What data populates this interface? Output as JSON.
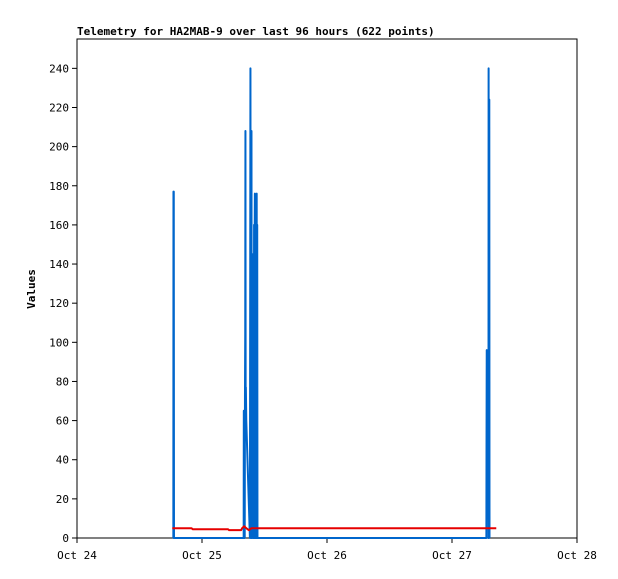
{
  "chart_data": {
    "type": "line",
    "title": "Telemetry for HA2MAB-9 over last 96 hours (622 points)",
    "ylabel": "Values",
    "xlabel": "",
    "x_ticks": [
      "Oct 24",
      "Oct 25",
      "Oct 26",
      "Oct 27",
      "Oct 28"
    ],
    "x_range_hours": [
      0,
      96
    ],
    "y_ticks": [
      0,
      20,
      40,
      60,
      80,
      100,
      120,
      140,
      160,
      180,
      200,
      220,
      240
    ],
    "ylim": [
      0,
      255
    ],
    "grid": false,
    "colors": {
      "series_blue": "#0066cc",
      "series_red": "#e60000"
    },
    "series": [
      {
        "color": "#0066cc",
        "points": [
          [
            18.5,
            0
          ],
          [
            18.52,
            177
          ],
          [
            18.54,
            0
          ],
          [
            18.58,
            177
          ],
          [
            18.62,
            0
          ],
          [
            32.0,
            0
          ],
          [
            32.03,
            65
          ],
          [
            32.07,
            0
          ],
          [
            32.1,
            40
          ],
          [
            32.13,
            56
          ],
          [
            32.2,
            0
          ],
          [
            32.25,
            72
          ],
          [
            32.3,
            104
          ],
          [
            32.34,
            208
          ],
          [
            32.38,
            64
          ],
          [
            32.42,
            77
          ],
          [
            32.5,
            60
          ],
          [
            33.2,
            0
          ],
          [
            33.3,
            240
          ],
          [
            33.36,
            0
          ],
          [
            33.4,
            160
          ],
          [
            33.45,
            0
          ],
          [
            33.5,
            208
          ],
          [
            33.55,
            0
          ],
          [
            33.6,
            112
          ],
          [
            33.7,
            0
          ],
          [
            33.75,
            145
          ],
          [
            33.8,
            0
          ],
          [
            33.85,
            50
          ],
          [
            33.92,
            0
          ],
          [
            34.0,
            160
          ],
          [
            34.05,
            0
          ],
          [
            34.1,
            144
          ],
          [
            34.15,
            176
          ],
          [
            34.2,
            0
          ],
          [
            34.3,
            144
          ],
          [
            34.35,
            64
          ],
          [
            34.4,
            128
          ],
          [
            34.45,
            0
          ],
          [
            34.5,
            176
          ],
          [
            34.55,
            0
          ],
          [
            34.6,
            160
          ],
          [
            34.65,
            0
          ],
          [
            78.6,
            0
          ],
          [
            78.63,
            48
          ],
          [
            78.67,
            96
          ],
          [
            78.75,
            90
          ],
          [
            78.82,
            82
          ],
          [
            78.9,
            72
          ],
          [
            78.95,
            64
          ],
          [
            79.0,
            0
          ],
          [
            79.03,
            240
          ],
          [
            79.06,
            0
          ],
          [
            79.09,
            208
          ],
          [
            79.12,
            0
          ],
          [
            79.16,
            224
          ],
          [
            79.2,
            0
          ]
        ]
      },
      {
        "color": "#e60000",
        "points": [
          [
            18.3,
            5
          ],
          [
            22.0,
            5
          ],
          [
            22.2,
            4.5
          ],
          [
            29.0,
            4.5
          ],
          [
            29.2,
            4
          ],
          [
            31.5,
            4
          ],
          [
            31.7,
            5
          ],
          [
            32.1,
            6
          ],
          [
            32.5,
            5
          ],
          [
            33.0,
            4
          ],
          [
            33.5,
            5
          ],
          [
            50.0,
            5
          ],
          [
            70.0,
            5
          ],
          [
            80.5,
            5
          ]
        ]
      }
    ]
  }
}
